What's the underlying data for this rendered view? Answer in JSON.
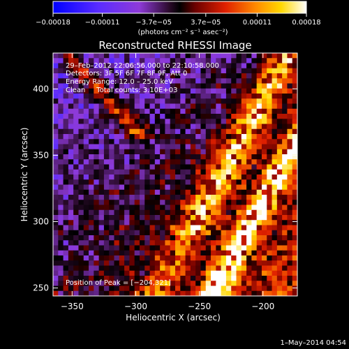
{
  "chart_data": {
    "type": "heatmap",
    "title": "Reconstructed RHESSI Image",
    "xlabel": "Heliocentric X (arcsec)",
    "ylabel": "Heliocentric Y (arcsec)",
    "xlim": [
      -365,
      -173
    ],
    "ylim": [
      244,
      427
    ],
    "x_ticks": [
      {
        "value": -350,
        "label": "−350"
      },
      {
        "value": -300,
        "label": "−300"
      },
      {
        "value": -250,
        "label": "−250"
      },
      {
        "value": -200,
        "label": "−200"
      }
    ],
    "y_ticks": [
      {
        "value": 250,
        "label": "250"
      },
      {
        "value": 300,
        "label": "300"
      },
      {
        "value": 350,
        "label": "350"
      },
      {
        "value": 400,
        "label": "400"
      }
    ],
    "colorbar": {
      "range": [
        -0.00018,
        0.00018
      ],
      "ticks": [
        {
          "value": -0.00018,
          "label": "−0.00018"
        },
        {
          "value": -0.00011,
          "label": "−0.00011"
        },
        {
          "value": -3.7e-05,
          "label": "−3.7e−05"
        },
        {
          "value": 3.7e-05,
          "label": "3.7e−05"
        },
        {
          "value": 0.00011,
          "label": "0.00011"
        },
        {
          "value": 0.00018,
          "label": "0.00018"
        }
      ],
      "unit_label": "(photons cm⁻² s⁻¹ asec⁻²)"
    },
    "annotations": [
      "29–Feb–2012 22:06:56.000 to 22:10:58.000",
      "Detectors: 3F 5F 6F 7F 8F 9F, Att 0",
      "Energy Range: 12.0 – 25.0 keV",
      "Clean     Total counts: 3.10E+03"
    ],
    "peak_label": "Position of Peak = [−204,321]",
    "peak": [
      -204,
      321
    ]
  },
  "footer": {
    "timestamp": "1–May–2014 04:54"
  }
}
